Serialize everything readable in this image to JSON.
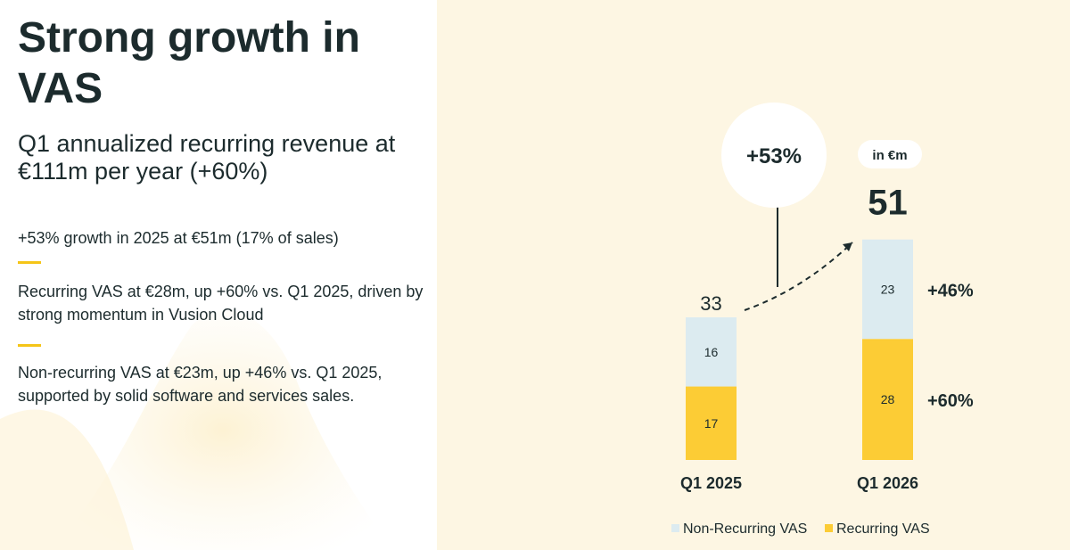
{
  "slide": {
    "title": "Strong growth in VAS",
    "subtitle": "Q1 annualized recurring revenue at €111m per year (+60%)",
    "bullets": [
      "+53% growth in 2025 at €51m (17% of sales)",
      "Recurring VAS at €28m, up +60% vs. Q1 2025, driven by strong momentum in Vusion Cloud",
      "Non-recurring VAS at €23m, up +46% vs. Q1 2025, supported by solid software and services sales."
    ]
  },
  "colors": {
    "non_recurring": "#dcebf0",
    "recurring": "#fccc35",
    "accent": "#f5c518",
    "panel_bg": "#fdf6e3",
    "text": "#1c2b2d"
  },
  "chart_data": {
    "type": "bar",
    "stacked": true,
    "categories": [
      "Q1 2025",
      "Q1 2026"
    ],
    "series": [
      {
        "name": "Recurring VAS",
        "values": [
          17,
          28
        ]
      },
      {
        "name": "Non-Recurring VAS",
        "values": [
          16,
          23
        ]
      }
    ],
    "totals": [
      33,
      51
    ],
    "unit_label": "in €m",
    "growth_label": "+53%",
    "segment_growth": {
      "recurring": "+60%",
      "non_recurring": "+46%"
    },
    "legend_position": "bottom"
  }
}
